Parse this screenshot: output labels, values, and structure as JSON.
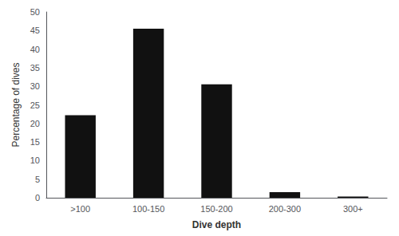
{
  "chart_data": {
    "type": "bar",
    "categories": [
      ">100",
      "100-150",
      "150-200",
      "200-300",
      "300+"
    ],
    "values": [
      22.2,
      45.5,
      30.5,
      1.5,
      0.3
    ],
    "color": "#111111",
    "xlabel": "Dive depth",
    "ylabel": "Percentage of dives",
    "ylim": [
      0,
      50
    ],
    "yticks": [
      0,
      5,
      10,
      15,
      20,
      25,
      30,
      35,
      40,
      45,
      50
    ],
    "grid": false
  }
}
